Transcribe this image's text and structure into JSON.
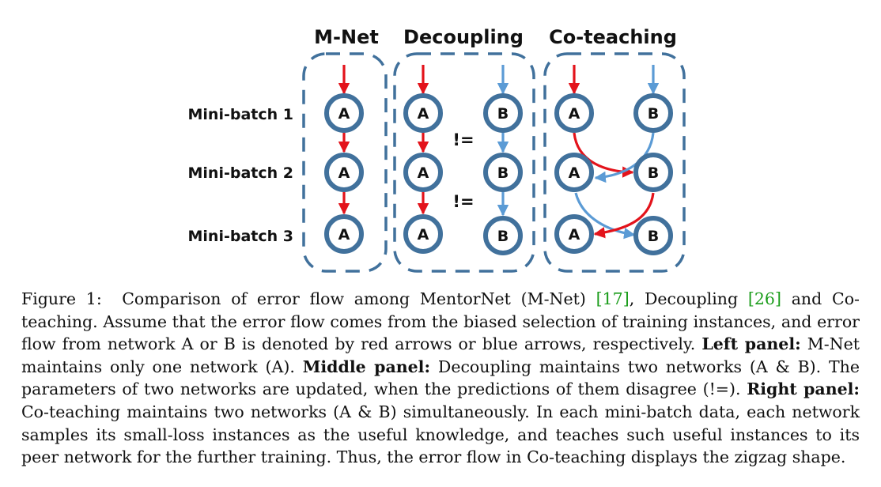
{
  "figure": {
    "panels": [
      {
        "title": "M-Net"
      },
      {
        "title": "Decoupling"
      },
      {
        "title": "Co-teaching"
      }
    ],
    "rows": [
      "Mini-batch 1",
      "Mini-batch 2",
      "Mini-batch 3"
    ],
    "node_a": "A",
    "node_b": "B",
    "neq": "!=",
    "colors": {
      "network_a_error": "#e3131b",
      "network_b_error": "#5b9bd5",
      "node_ring": "#41719c"
    }
  },
  "caption": {
    "label": "Figure 1:",
    "s1": "Comparison of error flow among MentorNet (M-Net) ",
    "ref1": "[17]",
    "s2": ", Decoupling ",
    "ref2": "[26]",
    "s3": " and Co-teaching. Assume that the error flow comes from the biased selection of training instances, and error flow from network A or B is denoted by red arrows or blue arrows, respectively. ",
    "left_head": "Left panel:",
    "left_text": " M-Net maintains only one network (A). ",
    "middle_head": "Middle panel:",
    "middle_text": " Decoupling maintains two networks (A & B). The parameters of two networks are updated, when the predictions of them disagree (!=). ",
    "right_head": "Right panel:",
    "right_text": " Co-teaching maintains two networks (A & B) simultaneously. In each mini-batch data, each network samples its small-loss instances as the useful knowledge, and teaches such useful instances to its peer network for the further training. Thus, the error flow in Co-teaching displays the zigzag shape."
  }
}
